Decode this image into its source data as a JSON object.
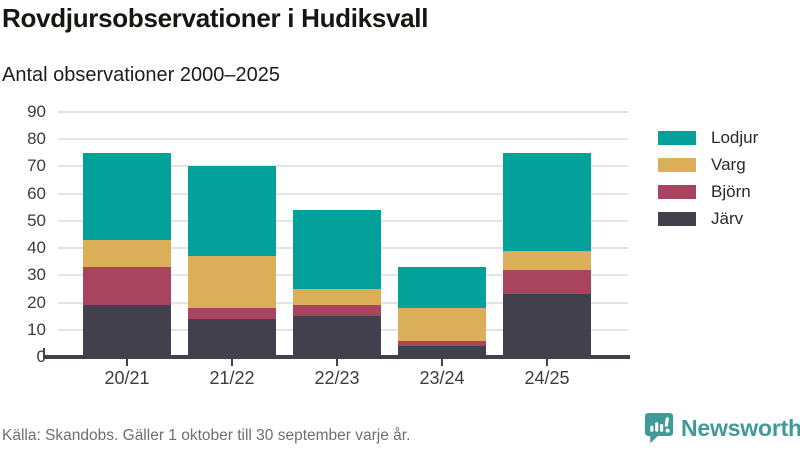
{
  "header": {
    "title": "Rovdjursobservationer i Hudiksvall",
    "subtitle": "Antal observationer 2000–2025"
  },
  "chart_data": {
    "type": "bar",
    "stacked": true,
    "title": "Rovdjursobservationer i Hudiksvall",
    "subtitle": "Antal observationer 2000–2025",
    "categories": [
      "20/21",
      "21/22",
      "22/23",
      "23/24",
      "24/25"
    ],
    "series": [
      {
        "name": "Järv",
        "color": "#43404D",
        "values": [
          19,
          14,
          15,
          4,
          23
        ]
      },
      {
        "name": "Björn",
        "color": "#A8445F",
        "values": [
          14,
          4,
          4,
          2,
          9
        ]
      },
      {
        "name": "Varg",
        "color": "#DBAE5A",
        "values": [
          10,
          19,
          6,
          12,
          7
        ]
      },
      {
        "name": "Lodjur",
        "color": "#04A09A",
        "values": [
          32,
          33,
          29,
          15,
          36
        ]
      }
    ],
    "stack_totals": [
      75,
      70,
      54,
      33,
      75
    ],
    "legend_order": [
      "Lodjur",
      "Varg",
      "Björn",
      "Järv"
    ],
    "legend_position": "right",
    "ylim": [
      0,
      90
    ],
    "ytick_step": 10,
    "grid": true
  },
  "footer": {
    "source": "Källa: Skandobs. Gäller 1 oktober till 30 september varje år.",
    "brand": "Newsworthy"
  },
  "colors": {
    "background": "#FFFFFF",
    "gridline": "#E4E4E4",
    "axis": "#43404D",
    "brand_teal": "#3E9B98",
    "title_text": "#161613",
    "axis_text": "#3D3D3D",
    "muted_text": "#6F6F6E"
  }
}
